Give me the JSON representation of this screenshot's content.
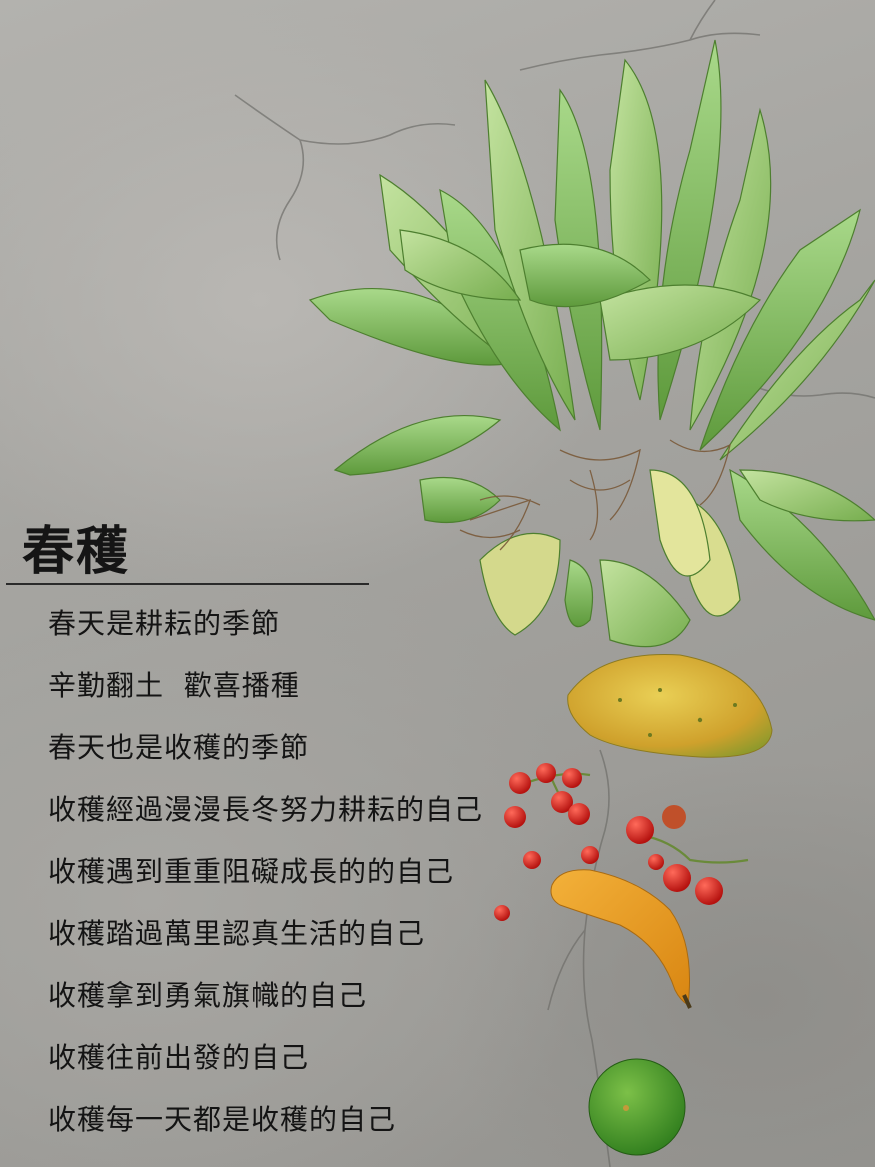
{
  "title": "春穫",
  "poem": [
    "春天是耕耘的季節",
    "辛勤翻土  歡喜播種",
    "春天也是收穫的季節",
    "收穫經過漫漫長冬努力耕耘的自己",
    "收穫遇到重重阻礙成長的的自己",
    "收穫踏過萬里認真生活的自己",
    "收穫拿到勇氣旗幟的自己",
    "收穫往前出發的自己",
    "收穫每一天都是收穫的自己"
  ],
  "colors": {
    "background": "#a8a7a3",
    "text": "#141414",
    "lettuce": "#8fc46a",
    "papaya": "#d7b43a",
    "tomato": "#d3201f",
    "orange_fruit": "#3f9a26"
  }
}
